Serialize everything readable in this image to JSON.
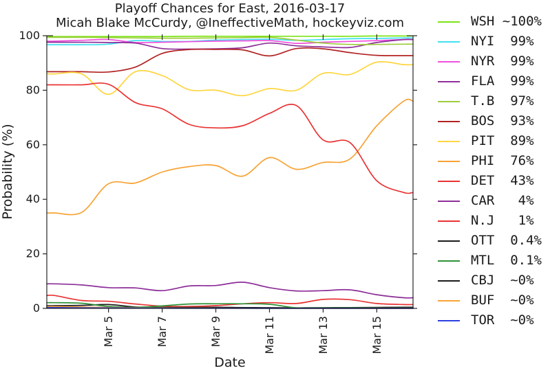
{
  "chart_data": {
    "type": "line",
    "title": "Playoff Chances for East, 2016-03-17",
    "subtitle": "Micah Blake McCurdy, @IneffectiveMath, hockeyviz.com",
    "xlabel": "Date",
    "ylabel": "Probability (%)",
    "grid": false,
    "legend_position": "right",
    "xlim": [
      2.7,
      16.35
    ],
    "ylim": [
      0,
      100
    ],
    "y_ticks": [
      0,
      20,
      40,
      60,
      80,
      100
    ],
    "x_ticks": {
      "days": [
        5,
        7,
        9,
        11,
        13,
        15
      ],
      "labels": [
        "Mar 5",
        "Mar 7",
        "Mar 9",
        "Mar 11",
        "Mar 13",
        "Mar 15"
      ]
    },
    "x": [
      3,
      4,
      5,
      6,
      7,
      8,
      9,
      10,
      11,
      12,
      13,
      14,
      15,
      16
    ],
    "series": [
      {
        "team": "WSH",
        "value": "~100%",
        "label": "WSH ~100%",
        "color": "#7be414",
        "values": [
          99.7,
          99.7,
          99.7,
          99.7,
          99.7,
          99.8,
          99.8,
          99.8,
          99.8,
          99.8,
          99.8,
          99.8,
          99.9,
          99.9
        ]
      },
      {
        "team": "NYI",
        "value": "99%",
        "label": "NYI  99%",
        "color": "#3fe0f0",
        "values": [
          96.7,
          96.7,
          96.9,
          98.2,
          97.9,
          97.9,
          98.4,
          98.6,
          98.7,
          98.3,
          98.6,
          98.9,
          99.0,
          99.2
        ]
      },
      {
        "team": "NYR",
        "value": "99%",
        "label": "NYR  99%",
        "color": "#f050dc",
        "values": [
          98.0,
          98.3,
          98.6,
          97.5,
          97.6,
          97.8,
          98.0,
          98.1,
          98.2,
          97.2,
          97.6,
          97.9,
          98.2,
          98.6
        ]
      },
      {
        "team": "FLA",
        "value": "99%",
        "label": "FLA  99%",
        "color": "#8c2d98",
        "values": [
          97.6,
          97.6,
          97.5,
          97.3,
          95.3,
          95.1,
          95.2,
          95.6,
          97.3,
          96.3,
          95.9,
          95.7,
          97.5,
          98.6
        ]
      },
      {
        "team": "T.B",
        "value": "97%",
        "label": "T.B  97%",
        "color": "#9ccb3b",
        "values": [
          99.4,
          99.4,
          99.3,
          99.2,
          99.1,
          99.1,
          99.2,
          99.3,
          99.4,
          98.4,
          97.3,
          96.8,
          96.8,
          96.9
        ]
      },
      {
        "team": "BOS",
        "value": "93%",
        "label": "BOS  93%",
        "color": "#b22222",
        "values": [
          86.8,
          86.8,
          86.7,
          88.5,
          93.5,
          94.9,
          95.0,
          94.8,
          92.6,
          95.3,
          95.2,
          93.8,
          92.8,
          92.7
        ]
      },
      {
        "team": "PIT",
        "value": "89%",
        "label": "PIT  89%",
        "color": "#ffd53e",
        "values": [
          86.0,
          86.0,
          78.5,
          86.8,
          85.4,
          80.2,
          80.0,
          78.0,
          80.6,
          80.0,
          86.2,
          85.8,
          90.3,
          89.4
        ]
      },
      {
        "team": "PHI",
        "value": "76%",
        "label": "PHI  76%",
        "color": "#f7a233",
        "values": [
          35.0,
          35.2,
          45.7,
          46.0,
          50.0,
          52.0,
          52.4,
          48.5,
          55.3,
          51.0,
          53.5,
          54.8,
          67.0,
          76.0
        ]
      },
      {
        "team": "DET",
        "value": "43%",
        "label": "DET  43%",
        "color": "#e93232",
        "values": [
          82.0,
          82.0,
          82.2,
          75.5,
          73.2,
          67.5,
          66.2,
          67.0,
          71.5,
          74.4,
          61.8,
          60.8,
          46.8,
          42.5
        ]
      },
      {
        "team": "CAR",
        "value": "4%",
        "label": "CAR   4%",
        "color": "#8c2d98",
        "values": [
          9.0,
          8.6,
          7.6,
          7.5,
          6.5,
          8.2,
          8.4,
          9.6,
          7.6,
          6.4,
          6.5,
          6.8,
          5.0,
          3.9
        ]
      },
      {
        "team": "N.J",
        "value": "1%",
        "label": "N.J   1%",
        "color": "#e93232",
        "values": [
          4.7,
          2.9,
          2.6,
          1.6,
          0.8,
          0.7,
          1.0,
          1.7,
          2.1,
          1.8,
          3.3,
          3.2,
          1.8,
          1.4
        ]
      },
      {
        "team": "OTT",
        "value": "0.4%",
        "label": "OTT  0.4%",
        "color": "#1a1a1a",
        "values": [
          1.0,
          1.1,
          1.4,
          0.5,
          0.35,
          0.35,
          0.4,
          0.3,
          0.25,
          0.2,
          0.25,
          0.3,
          0.35,
          0.4
        ]
      },
      {
        "team": "MTL",
        "value": "0.1%",
        "label": "MTL  0.1%",
        "color": "#2c9135",
        "values": [
          2.1,
          1.9,
          0.7,
          0.4,
          0.9,
          1.6,
          1.7,
          1.7,
          1.5,
          0.2,
          0.15,
          0.15,
          0.12,
          0.1
        ]
      },
      {
        "team": "CBJ",
        "value": "~0%",
        "label": "CBJ  ~0%",
        "color": "#1a1a1a",
        "values": [
          0.45,
          0.4,
          0.3,
          0.2,
          0.15,
          0.1,
          0.1,
          0.08,
          0.06,
          0.05,
          0.05,
          0.04,
          0.03,
          0.02
        ]
      },
      {
        "team": "BUF",
        "value": "~0%",
        "label": "BUF  ~0%",
        "color": "#f7a233",
        "values": [
          0.7,
          0.5,
          0.3,
          0.2,
          0.15,
          0.1,
          0.08,
          0.06,
          0.05,
          0.04,
          0.03,
          0.03,
          0.02,
          0.01
        ]
      },
      {
        "team": "TOR",
        "value": "~0%",
        "label": "TOR  ~0%",
        "color": "#2b3de0",
        "values": [
          0.3,
          0.2,
          0.15,
          0.1,
          0.08,
          0.06,
          0.05,
          0.04,
          0.03,
          0.03,
          0.02,
          0.02,
          0.01,
          0.01
        ]
      }
    ]
  }
}
